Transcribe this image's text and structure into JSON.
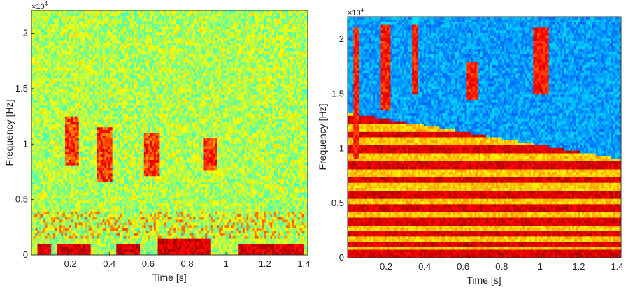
{
  "chart_data": [
    {
      "type": "heatmap",
      "xlabel": "Time [s]",
      "ylabel": "Frequency [Hz]",
      "exponent_label": "×10",
      "exponent_power": "4",
      "xlim": [
        0,
        1.42
      ],
      "ylim": [
        0,
        22050
      ],
      "xticks": [
        0.2,
        0.4,
        0.6,
        0.8,
        1.0,
        1.2,
        1.4
      ],
      "xtick_labels": [
        "0.2",
        "0.4",
        "0.6",
        "0.8",
        "1",
        "1.2",
        "1.4"
      ],
      "yticks": [
        0,
        5000,
        10000,
        15000,
        20000
      ],
      "ytick_labels": [
        "0",
        "0.5",
        "1",
        "1.5",
        "2"
      ],
      "colormap": "jet",
      "background_color": "#b9d84a",
      "bursts": [
        {
          "t_start": 0.17,
          "t_end": 0.24,
          "f_low": 8000,
          "f_high": 12500
        },
        {
          "t_start": 0.33,
          "t_end": 0.42,
          "f_low": 6500,
          "f_high": 11500
        },
        {
          "t_start": 0.58,
          "t_end": 0.66,
          "f_low": 7000,
          "f_high": 11000
        },
        {
          "t_start": 0.88,
          "t_end": 0.95,
          "f_low": 7500,
          "f_high": 10500
        }
      ],
      "low_frequency_segments": [
        {
          "t_start": 0.03,
          "t_end": 0.1,
          "f_low": 0,
          "f_high": 900
        },
        {
          "t_start": 0.13,
          "t_end": 0.3,
          "f_low": 0,
          "f_high": 900
        },
        {
          "t_start": 0.44,
          "t_end": 0.56,
          "f_low": 0,
          "f_high": 900
        },
        {
          "t_start": 0.65,
          "t_end": 0.92,
          "f_low": 0,
          "f_high": 1400
        },
        {
          "t_start": 1.06,
          "t_end": 1.4,
          "f_low": 0,
          "f_high": 1000
        }
      ]
    },
    {
      "type": "heatmap",
      "xlabel": "Time [s]",
      "ylabel": "Frequency [Hz]",
      "exponent_label": "×10",
      "exponent_power": "4",
      "xlim": [
        0,
        1.42
      ],
      "ylim": [
        0,
        22050
      ],
      "xticks": [
        0.2,
        0.4,
        0.6,
        0.8,
        1.0,
        1.2,
        1.4
      ],
      "xtick_labels": [
        "0.2",
        "0.4",
        "0.6",
        "0.8",
        "1",
        "1.2",
        "1.4"
      ],
      "yticks": [
        0,
        5000,
        10000,
        15000,
        20000
      ],
      "ytick_labels": [
        "0",
        "0.5",
        "1",
        "1.5",
        "2"
      ],
      "colormap": "jet",
      "background_color": "#1f8fe6",
      "harmonics_hz": [
        300,
        1200,
        2200,
        3300,
        4500,
        5800,
        7100,
        8500,
        9900,
        11300,
        12600
      ],
      "high_frequency_columns": [
        {
          "t_start": 0.03,
          "t_end": 0.06,
          "f_low": 9000,
          "f_high": 21000
        },
        {
          "t_start": 0.17,
          "t_end": 0.22,
          "f_low": 13500,
          "f_high": 21500
        },
        {
          "t_start": 0.33,
          "t_end": 0.37,
          "f_low": 15000,
          "f_high": 22050
        },
        {
          "t_start": 0.62,
          "t_end": 0.68,
          "f_low": 14500,
          "f_high": 18000
        },
        {
          "t_start": 0.96,
          "t_end": 1.04,
          "f_low": 15000,
          "f_high": 21000
        }
      ]
    }
  ]
}
